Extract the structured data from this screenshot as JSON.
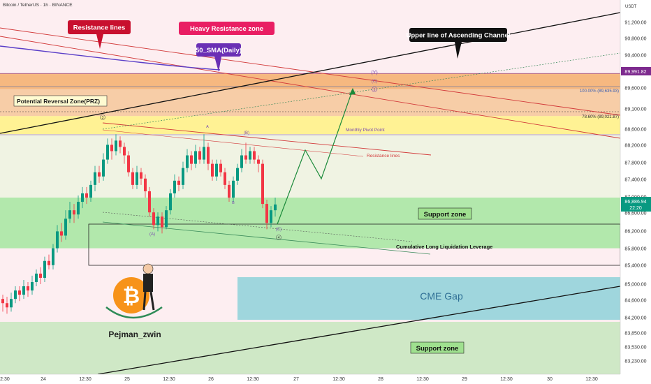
{
  "header": {
    "title": "Bitcoin / TetherUS · 1h · BINANCE"
  },
  "price_axis": {
    "currency": "USDT",
    "ticks": [
      "91,200.00",
      "90,800.00",
      "90,400.00",
      "90,000.00",
      "89,600.00",
      "89,100.00",
      "88,600.00",
      "88,200.00",
      "87,800.00",
      "87,400.00",
      "87,000.00",
      "86,600.00",
      "86,200.00",
      "85,800.00",
      "85,400.00",
      "85,000.00",
      "84,600.00",
      "84,200.00",
      "83,850.00",
      "83,530.00",
      "83,230.00"
    ],
    "flag_top": "89,991.82",
    "flag_last_price": "86,886.94",
    "flag_countdown": "22:20"
  },
  "time_axis": {
    "ticks": [
      "12:30",
      "24",
      "12:30",
      "25",
      "12:30",
      "26",
      "12:30",
      "27",
      "12:30",
      "28",
      "12:30",
      "29",
      "12:30",
      "30",
      "12:30"
    ]
  },
  "annotations": {
    "resistance_lines_callout": "Resistance lines",
    "heavy_resistance_zone": "Heavy Resistance zone",
    "sma_callout": "50_SMA(Daily)",
    "upper_channel_callout": "Upper line of Ascending Channel",
    "prz_label": "Potential Reversal Zone(PRZ)",
    "fib_100": "100.00% (89,635.93)",
    "fib_786": "78.60% (89,021.87)",
    "monthly_pivot": "Monthly Pivot Point",
    "resistance_lines_small": "Resistance lines",
    "support_zone_1": "Support zone",
    "cumulative_label": "Cumulative Long Liquidation Leverage",
    "cme_gap": "CME Gap",
    "support_zone_2": "Support zone",
    "brand": "Pejman_zwin",
    "wave_y": "(Y)",
    "wave_c_top": "(C)",
    "wave_5": "5",
    "wave_3": "3",
    "wave_a_small": "A",
    "wave_b_paren": "(B)",
    "wave_b": "B",
    "wave_a_paren": "(A)",
    "wave_c_bottom": "(C)",
    "wave_4": "4",
    "bitcoin_symbol": "₿"
  },
  "colors": {
    "up": "#089981",
    "down": "#f23645",
    "resistance_zone": "#f4a95e",
    "prz_zone": "#fff28a",
    "support_zone": "#a5e6a0",
    "cme_gap": "#9fd6dd",
    "callout_red": "#c8102e",
    "callout_pink": "#e91e63",
    "callout_purple": "#6a2fb5",
    "path_green": "#1b8a3a"
  },
  "chart_data": {
    "type": "candlestick",
    "title": "Bitcoin / TetherUS · 1h · BINANCE",
    "xlabel": "",
    "ylabel": "",
    "ylim": [
      83000,
      91500
    ],
    "last_price": 86886.94,
    "zones": [
      {
        "name": "Heavy Resistance zone",
        "low": 89620,
        "high": 90000
      },
      {
        "name": "Potential Reversal Zone(PRZ)",
        "low": 88650,
        "high": 89620
      },
      {
        "name": "Support zone",
        "low": 85850,
        "high": 86950
      },
      {
        "name": "CME Gap",
        "low": 84200,
        "high": 85100
      },
      {
        "name": "Support zone",
        "low": 83100,
        "high": 84100
      }
    ],
    "levels": [
      {
        "name": "Monthly Pivot Point",
        "value": 88550
      },
      {
        "name": "100.00%",
        "value": 89635.93
      },
      {
        "name": "78.60%",
        "value": 89021.87
      }
    ],
    "ohlc": [
      [
        84650,
        84550,
        84750,
        84350
      ],
      [
        84550,
        84450,
        84700,
        84300
      ],
      [
        84450,
        84650,
        84800,
        84350
      ],
      [
        84650,
        84850,
        84950,
        84550
      ],
      [
        84850,
        84750,
        84950,
        84600
      ],
      [
        84750,
        84950,
        85100,
        84650
      ],
      [
        84950,
        84850,
        85050,
        84700
      ],
      [
        84850,
        85050,
        85200,
        84750
      ],
      [
        85050,
        85250,
        85350,
        84950
      ],
      [
        85250,
        85150,
        85400,
        85000
      ],
      [
        85150,
        85550,
        85650,
        85050
      ],
      [
        85550,
        85450,
        85700,
        85350
      ],
      [
        85450,
        85850,
        85950,
        85350
      ],
      [
        85850,
        86250,
        86400,
        85750
      ],
      [
        86250,
        86150,
        86450,
        86000
      ],
      [
        86150,
        86550,
        86750,
        86050
      ],
      [
        86550,
        86750,
        86950,
        86450
      ],
      [
        86750,
        86650,
        86900,
        86450
      ],
      [
        86650,
        86950,
        87100,
        86550
      ],
      [
        86950,
        87150,
        87300,
        86800
      ],
      [
        87150,
        87050,
        87300,
        86900
      ],
      [
        87050,
        87350,
        87450,
        86950
      ],
      [
        87350,
        87650,
        87800,
        87200
      ],
      [
        87650,
        87550,
        87800,
        87400
      ],
      [
        87550,
        87950,
        88100,
        87450
      ],
      [
        87950,
        88300,
        88450,
        87850
      ],
      [
        88300,
        88150,
        88450,
        87950
      ],
      [
        88150,
        88400,
        88550,
        88050
      ],
      [
        88400,
        88250,
        88500,
        88100
      ],
      [
        88250,
        88050,
        88350,
        87850
      ],
      [
        88050,
        87650,
        88150,
        87550
      ],
      [
        87650,
        87350,
        87750,
        87250
      ],
      [
        87350,
        87650,
        87800,
        87250
      ],
      [
        87650,
        87500,
        87750,
        87350
      ],
      [
        87500,
        87200,
        87600,
        87050
      ],
      [
        87200,
        86700,
        87300,
        86600
      ],
      [
        86700,
        86400,
        86800,
        86300
      ],
      [
        86400,
        86600,
        86700,
        86250
      ],
      [
        86600,
        86350,
        86700,
        86200
      ],
      [
        86350,
        86750,
        86850,
        86300
      ],
      [
        86750,
        87150,
        87250,
        86650
      ],
      [
        87150,
        87450,
        87600,
        87050
      ],
      [
        87450,
        87350,
        87550,
        87200
      ],
      [
        87350,
        87750,
        87900,
        87250
      ],
      [
        87750,
        88050,
        88200,
        87650
      ],
      [
        88050,
        87850,
        88150,
        87700
      ],
      [
        87850,
        88150,
        88300,
        87750
      ],
      [
        88150,
        87950,
        88250,
        87850
      ],
      [
        87950,
        88250,
        88550,
        87850
      ],
      [
        88250,
        87850,
        88350,
        87700
      ],
      [
        87850,
        87550,
        87950,
        87450
      ],
      [
        87550,
        87850,
        87950,
        87450
      ],
      [
        87850,
        87650,
        87950,
        87550
      ],
      [
        87650,
        87350,
        87750,
        87250
      ],
      [
        87350,
        87050,
        87450,
        86950
      ],
      [
        87050,
        87450,
        87550,
        86950
      ],
      [
        87450,
        87750,
        87850,
        87350
      ],
      [
        87750,
        88050,
        88200,
        87650
      ],
      [
        88050,
        87950,
        88350,
        87850
      ],
      [
        87950,
        88150,
        88250,
        87850
      ],
      [
        88150,
        87950,
        88250,
        87850
      ],
      [
        87950,
        87850,
        88050,
        87650
      ],
      [
        87850,
        86900,
        87950,
        86800
      ],
      [
        86900,
        86450,
        87000,
        86300
      ],
      [
        86450,
        86750,
        86850,
        86350
      ],
      [
        86750,
        86886.94,
        87050,
        86600
      ]
    ]
  }
}
